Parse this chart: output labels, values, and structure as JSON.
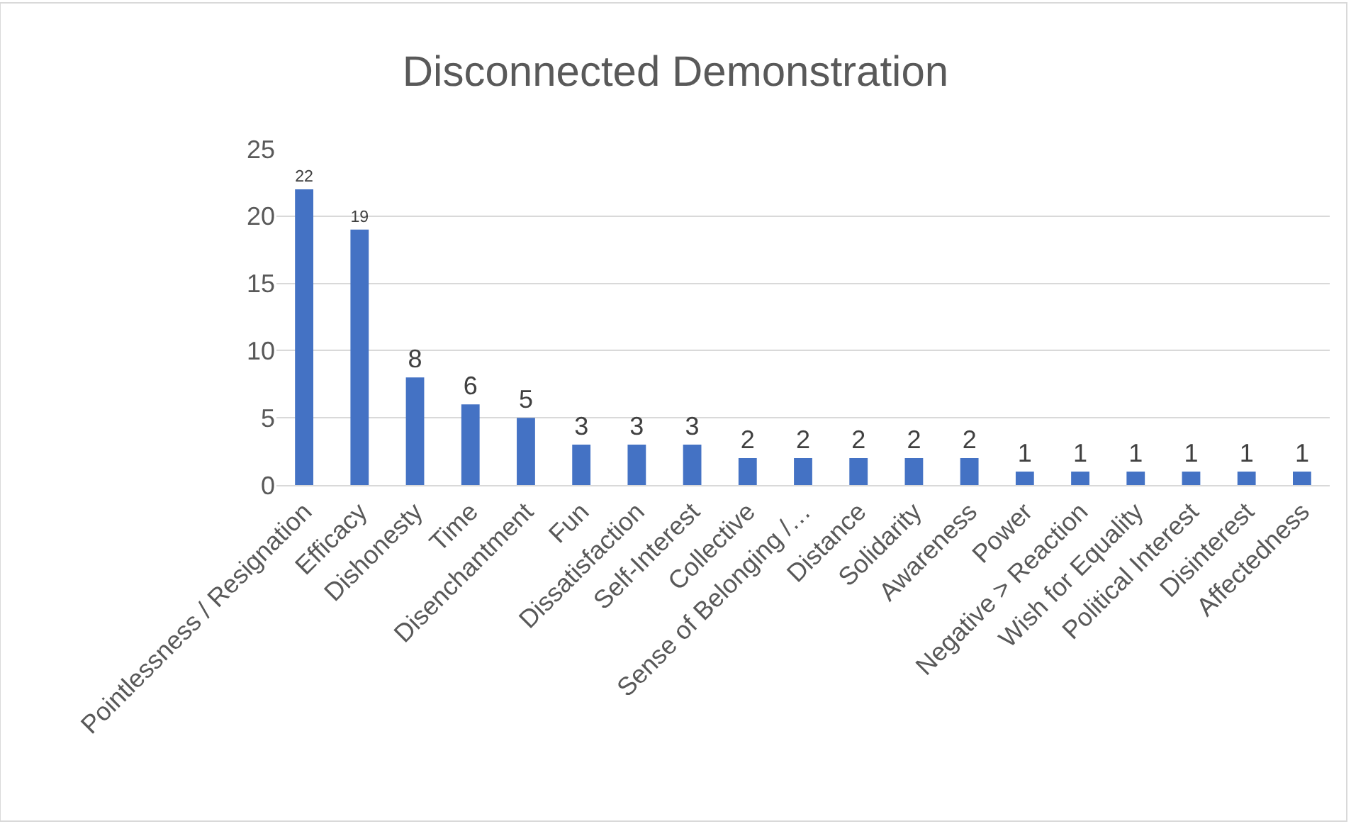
{
  "chart_data": {
    "type": "bar",
    "title": "Disconnected Demonstration",
    "categories": [
      "Pointlessness / Resignation",
      "Efficacy",
      "Dishonesty",
      "Time",
      "Disenchantment",
      "Fun",
      "Dissatisfaction",
      "Self-Interest",
      "Collective",
      "Sense of Belonging /…",
      "Distance",
      "Solidarity",
      "Awareness",
      "Power",
      "Negative > Reaction",
      "Wish for Equality",
      "Political Interest",
      "Disinterest",
      "Affectedness"
    ],
    "values": [
      22,
      19,
      8,
      6,
      5,
      3,
      3,
      3,
      2,
      2,
      2,
      2,
      2,
      1,
      1,
      1,
      1,
      1,
      1
    ],
    "color": "#4472c4",
    "ylim": [
      0,
      25
    ],
    "yticks": [
      0,
      5,
      10,
      15,
      20,
      25
    ],
    "grid": "y",
    "data_labels": true
  }
}
